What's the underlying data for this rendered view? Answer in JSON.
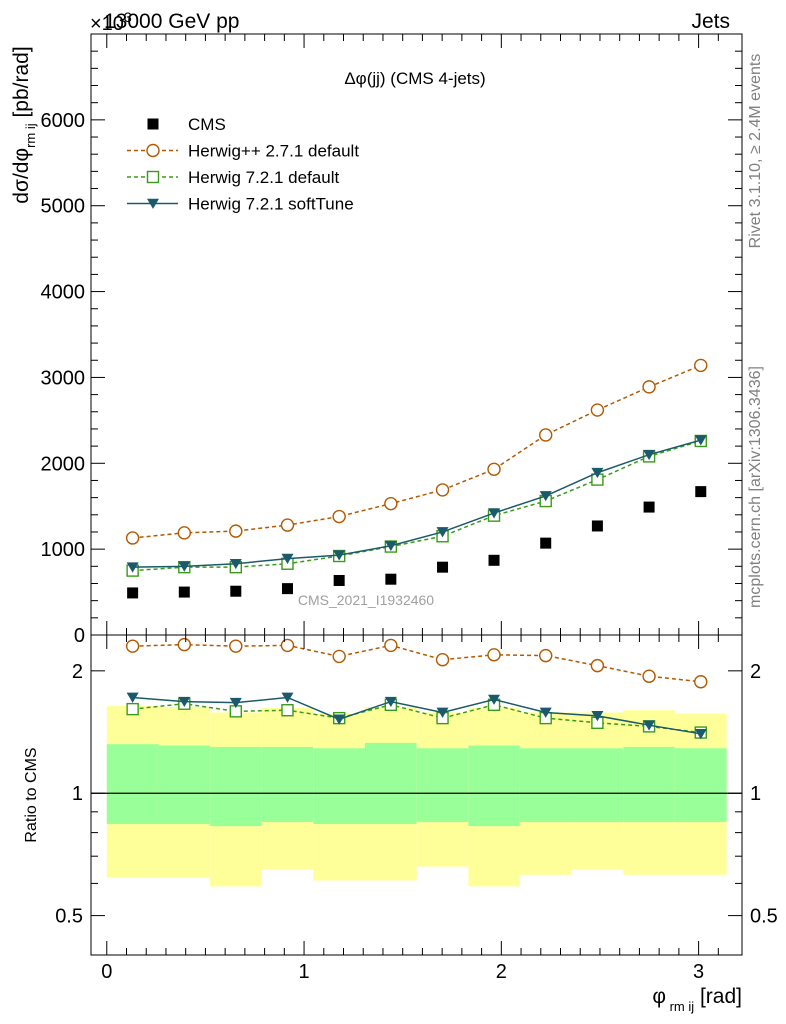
{
  "header": {
    "left_title": "13000 GeV pp",
    "right_title": "Jets",
    "exponent_label": "×10",
    "exponent_power": "3"
  },
  "side_labels": {
    "rivet": "Rivet 3.1.10, ≥ 2.4M events",
    "mcplots": "mcplots.cern.ch [arXiv:1306.3436]"
  },
  "watermark": "CMS_2021_I1932460",
  "chart_data": [
    {
      "type": "scatter",
      "title": "Δφ(jj) (CMS 4-jets)",
      "ylabel": "dσ/dφ_rm ij [pb/rad]",
      "ylim": [
        0,
        7000
      ],
      "xlim": [
        -0.08,
        3.22
      ],
      "yticks": [
        "0",
        "1000",
        "2000",
        "3000",
        "4000",
        "5000",
        "6000"
      ],
      "x": [
        0.131,
        0.393,
        0.654,
        0.916,
        1.178,
        1.44,
        1.702,
        1.963,
        2.225,
        2.487,
        2.749,
        3.011
      ],
      "legend_position": "top-left",
      "series": [
        {
          "name": "CMS",
          "color": "#000000",
          "marker": "filled-square",
          "line": "none",
          "values": [
            490,
            500,
            510,
            540,
            635,
            650,
            790,
            870,
            1070,
            1270,
            1490,
            1670
          ]
        },
        {
          "name": "Herwig++ 2.7.1 default",
          "color": "#b35900",
          "marker": "open-circle",
          "line": "dashed",
          "values": [
            1130,
            1190,
            1210,
            1280,
            1380,
            1530,
            1690,
            1930,
            2330,
            2620,
            2890,
            3140
          ]
        },
        {
          "name": "Herwig 7.2.1 default",
          "color": "#3a9a1a",
          "marker": "open-square",
          "line": "dashed",
          "values": [
            750,
            790,
            790,
            830,
            920,
            1030,
            1150,
            1390,
            1560,
            1810,
            2080,
            2260
          ]
        },
        {
          "name": "Herwig 7.2.1 softTune",
          "color": "#1a5a6a",
          "marker": "filled-triangle-down",
          "line": "solid",
          "values": [
            790,
            800,
            830,
            890,
            930,
            1040,
            1200,
            1420,
            1620,
            1890,
            2100,
            2270
          ]
        }
      ]
    },
    {
      "type": "line",
      "title": "",
      "ylabel": "Ratio to CMS",
      "xlabel": "φ_rm ij [rad]",
      "yscale": "log",
      "ylim": [
        0.4,
        2.45
      ],
      "xlim": [
        -0.08,
        3.22
      ],
      "yticks": [
        "0.5",
        "1",
        "2"
      ],
      "xticks": [
        "0",
        "1",
        "2",
        "3"
      ],
      "bin_edges": [
        0.0,
        0.262,
        0.524,
        0.785,
        1.047,
        1.309,
        1.571,
        1.833,
        2.094,
        2.356,
        2.618,
        2.88,
        3.142
      ],
      "bands": {
        "green_color": "#99ff99",
        "yellow_color": "#ffff99",
        "green_low": [
          0.84,
          0.84,
          0.83,
          0.85,
          0.84,
          0.84,
          0.85,
          0.83,
          0.85,
          0.85,
          0.85,
          0.85
        ],
        "green_high": [
          1.32,
          1.31,
          1.3,
          1.3,
          1.29,
          1.33,
          1.29,
          1.31,
          1.29,
          1.29,
          1.3,
          1.29
        ],
        "yellow_low": [
          0.62,
          0.62,
          0.59,
          0.65,
          0.61,
          0.61,
          0.66,
          0.59,
          0.63,
          0.65,
          0.63,
          0.63
        ],
        "yellow_high": [
          1.64,
          1.63,
          1.58,
          1.62,
          1.57,
          1.63,
          1.58,
          1.62,
          1.58,
          1.58,
          1.6,
          1.57
        ]
      },
      "x": [
        0.131,
        0.393,
        0.654,
        0.916,
        1.178,
        1.44,
        1.702,
        1.963,
        2.225,
        2.487,
        2.749,
        3.011
      ],
      "series": [
        {
          "name": "Herwig++ 2.7.1 default",
          "color": "#b35900",
          "marker": "open-circle",
          "line": "dashed",
          "values": [
            2.3,
            2.32,
            2.3,
            2.31,
            2.17,
            2.31,
            2.13,
            2.19,
            2.18,
            2.06,
            1.94,
            1.88
          ]
        },
        {
          "name": "Herwig 7.2.1 default",
          "color": "#3a9a1a",
          "marker": "open-square",
          "line": "dashed",
          "values": [
            1.61,
            1.66,
            1.59,
            1.6,
            1.53,
            1.65,
            1.53,
            1.65,
            1.53,
            1.49,
            1.46,
            1.41
          ]
        },
        {
          "name": "Herwig 7.2.1 softTune",
          "color": "#1a5a6a",
          "marker": "filled-triangle-down",
          "line": "solid",
          "values": [
            1.72,
            1.68,
            1.67,
            1.72,
            1.52,
            1.68,
            1.58,
            1.7,
            1.58,
            1.55,
            1.47,
            1.4
          ]
        }
      ]
    }
  ]
}
